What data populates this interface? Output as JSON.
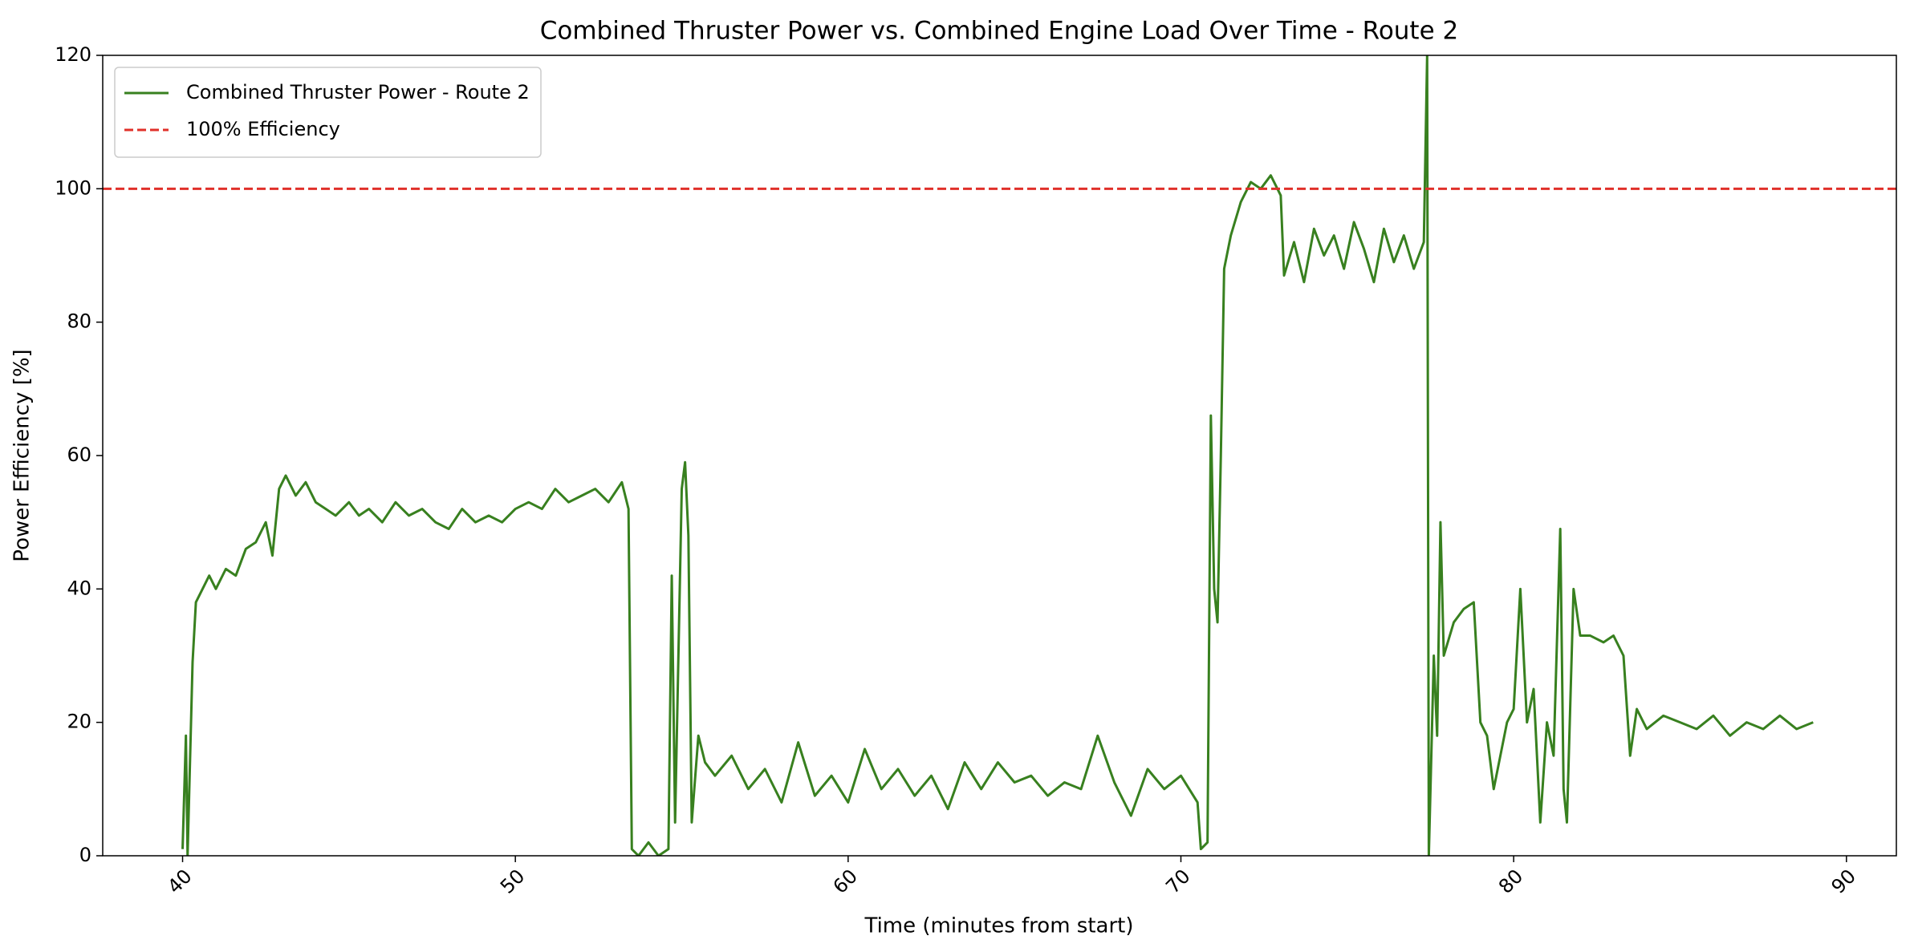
{
  "chart_data": {
    "type": "line",
    "title": "Combined Thruster Power vs. Combined Engine Load Over Time - Route 2",
    "xlabel": "Time (minutes from start)",
    "ylabel": "Power Efficiency [%]",
    "x": [
      40.0,
      40.1,
      40.15,
      40.3,
      40.4,
      40.6,
      40.8,
      41.0,
      41.3,
      41.6,
      41.9,
      42.2,
      42.5,
      42.7,
      42.9,
      43.1,
      43.4,
      43.7,
      44.0,
      44.3,
      44.6,
      45.0,
      45.3,
      45.6,
      46.0,
      46.4,
      46.8,
      47.2,
      47.6,
      48.0,
      48.4,
      48.8,
      49.2,
      49.6,
      50.0,
      50.4,
      50.8,
      51.2,
      51.6,
      52.0,
      52.4,
      52.8,
      53.2,
      53.4,
      53.5,
      53.7,
      54.0,
      54.3,
      54.6,
      54.7,
      54.8,
      55.0,
      55.1,
      55.2,
      55.3,
      55.5,
      55.7,
      56.0,
      56.5,
      57.0,
      57.5,
      58.0,
      58.5,
      59.0,
      59.5,
      60.0,
      60.5,
      61.0,
      61.5,
      62.0,
      62.5,
      63.0,
      63.5,
      64.0,
      64.5,
      65.0,
      65.5,
      66.0,
      66.5,
      67.0,
      67.5,
      68.0,
      68.5,
      69.0,
      69.5,
      70.0,
      70.5,
      70.6,
      70.8,
      70.9,
      71.0,
      71.1,
      71.2,
      71.3,
      71.5,
      71.8,
      72.1,
      72.4,
      72.7,
      73.0,
      73.1,
      73.4,
      73.7,
      74.0,
      74.3,
      74.6,
      74.9,
      75.2,
      75.5,
      75.8,
      76.1,
      76.4,
      76.7,
      77.0,
      77.3,
      77.4,
      77.45,
      77.6,
      77.7,
      77.8,
      77.9,
      78.2,
      78.5,
      78.8,
      79.0,
      79.2,
      79.4,
      79.6,
      79.8,
      80.0,
      80.2,
      80.4,
      80.6,
      80.8,
      81.0,
      81.2,
      81.4,
      81.5,
      81.6,
      81.8,
      82.0,
      82.3,
      82.7,
      83.0,
      83.3,
      83.5,
      83.7,
      84.0,
      84.5,
      85.0,
      85.5,
      86.0,
      86.5,
      87.0,
      87.5,
      88.0,
      88.5,
      89.0
    ],
    "series": [
      {
        "name": "Combined Thruster Power - Route 2",
        "color": "#38801f",
        "values": [
          1,
          18,
          0,
          29,
          38,
          40,
          42,
          40,
          43,
          42,
          46,
          47,
          50,
          45,
          55,
          57,
          54,
          56,
          53,
          52,
          51,
          53,
          51,
          52,
          50,
          53,
          51,
          52,
          50,
          49,
          52,
          50,
          51,
          50,
          52,
          53,
          52,
          55,
          53,
          54,
          55,
          53,
          56,
          52,
          1,
          0,
          2,
          0,
          1,
          42,
          5,
          55,
          59,
          48,
          5,
          18,
          14,
          12,
          15,
          10,
          13,
          8,
          17,
          9,
          12,
          8,
          16,
          10,
          13,
          9,
          12,
          7,
          14,
          10,
          14,
          11,
          12,
          9,
          11,
          10,
          18,
          11,
          6,
          13,
          10,
          12,
          8,
          1,
          2,
          66,
          40,
          35,
          60,
          88,
          93,
          98,
          101,
          100,
          102,
          99,
          87,
          92,
          86,
          94,
          90,
          93,
          88,
          95,
          91,
          86,
          94,
          89,
          93,
          88,
          92,
          120,
          0,
          30,
          18,
          50,
          30,
          35,
          37,
          38,
          20,
          18,
          10,
          15,
          20,
          22,
          40,
          20,
          25,
          5,
          20,
          15,
          49,
          10,
          5,
          40,
          33,
          33,
          32,
          33,
          30,
          15,
          22,
          19,
          21,
          20,
          19,
          21,
          18,
          20,
          19,
          21,
          19,
          20
        ]
      }
    ],
    "hlines": [
      {
        "name": "100% Efficiency",
        "value": 100,
        "color": "#e0302a",
        "style": "dashed"
      }
    ],
    "xlim": [
      37.6,
      91.5
    ],
    "ylim": [
      0,
      120
    ],
    "xticks": [
      40,
      50,
      60,
      70,
      80,
      90
    ],
    "yticks": [
      0,
      20,
      40,
      60,
      80,
      100,
      120
    ],
    "grid": false,
    "legend": "upper left"
  }
}
